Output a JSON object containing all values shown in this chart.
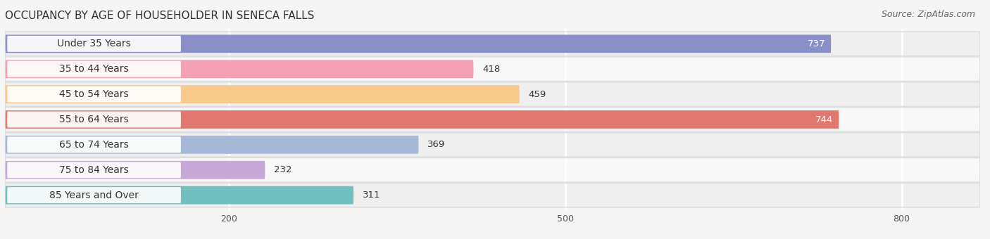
{
  "title": "OCCUPANCY BY AGE OF HOUSEHOLDER IN SENECA FALLS",
  "source": "Source: ZipAtlas.com",
  "categories": [
    "Under 35 Years",
    "35 to 44 Years",
    "45 to 54 Years",
    "55 to 64 Years",
    "65 to 74 Years",
    "75 to 84 Years",
    "85 Years and Over"
  ],
  "values": [
    737,
    418,
    459,
    744,
    369,
    232,
    311
  ],
  "bar_colors": [
    "#8B8FC8",
    "#F4A0B5",
    "#F7C98A",
    "#E07870",
    "#A8B8D8",
    "#C8A8D8",
    "#72BFC0"
  ],
  "label_colors": [
    "white",
    "black",
    "black",
    "white",
    "black",
    "black",
    "black"
  ],
  "row_colors": [
    "#EFEFEF",
    "#F8F8F8",
    "#EFEFEF",
    "#F8F8F8",
    "#EFEFEF",
    "#F8F8F8",
    "#EFEFEF"
  ],
  "xlim": [
    0,
    870
  ],
  "xticks": [
    200,
    500,
    800
  ],
  "title_fontsize": 11,
  "source_fontsize": 9,
  "bar_label_fontsize": 9.5,
  "tick_fontsize": 9,
  "category_fontsize": 10,
  "bar_height": 0.72,
  "background_color": "#f5f5f5"
}
